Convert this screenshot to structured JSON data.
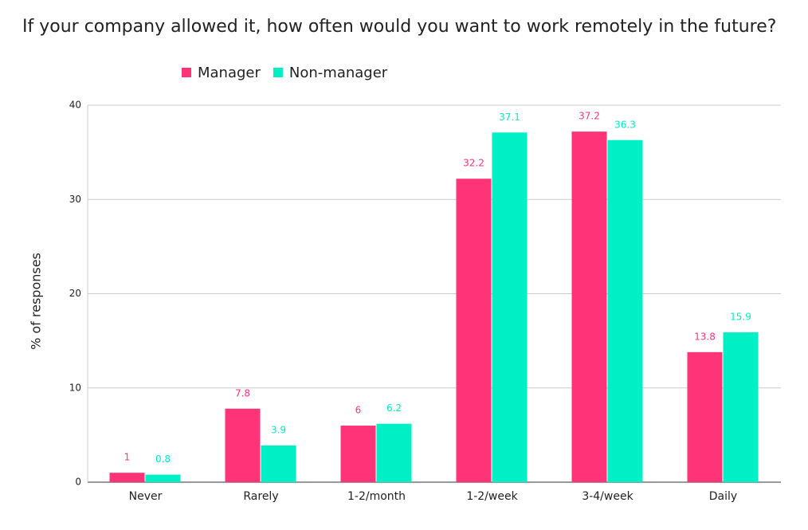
{
  "chart_data": {
    "type": "bar",
    "title": "If your company allowed it, how often would you want to work remotely in the future?",
    "y_label": "% of responses",
    "categories": [
      "Never",
      "Rarely",
      "1-2/month",
      "1-2/week",
      "3-4/week",
      "Daily"
    ],
    "series": [
      {
        "name": "Manager",
        "color": "#ff3377",
        "values": [
          1,
          7.8,
          6,
          32.2,
          37.2,
          13.8
        ]
      },
      {
        "name": "Non-manager",
        "color": "#00efc4",
        "values": [
          0.8,
          3.9,
          6.2,
          37.1,
          36.3,
          15.9
        ]
      }
    ],
    "ylim": [
      0,
      40
    ],
    "yticks": [
      0,
      10,
      20,
      30,
      40
    ],
    "grid": true,
    "legend": "top"
  }
}
